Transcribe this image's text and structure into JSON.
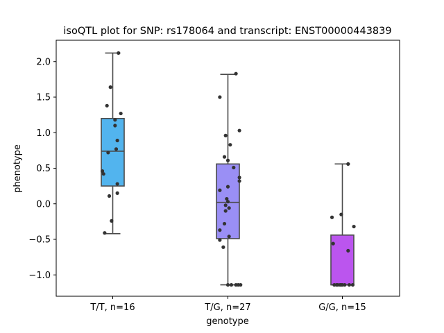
{
  "chart_data": {
    "type": "box",
    "title": "isoQTL plot for SNP: rs178064 and transcript: ENST00000443839",
    "xlabel": "genotype",
    "ylabel": "phenotype",
    "ylim": [
      -1.3,
      2.3
    ],
    "yticks": [
      -1.0,
      -0.5,
      0.0,
      0.5,
      1.0,
      1.5,
      2.0
    ],
    "ytick_labels": [
      "−1.0",
      "−0.5",
      "0.0",
      "0.5",
      "1.0",
      "1.5",
      "2.0"
    ],
    "grid": false,
    "categories": [
      "T/T, n=16",
      "T/G, n=27",
      "G/G, n=15"
    ],
    "colors": [
      "#52b4ee",
      "#9a8ff5",
      "#bb55ee"
    ],
    "boxes": [
      {
        "whisker_low": -0.42,
        "q1": 0.25,
        "median": 0.74,
        "q3": 1.2,
        "whisker_high": 2.12
      },
      {
        "whisker_low": -1.14,
        "q1": -0.49,
        "median": 0.02,
        "q3": 0.56,
        "whisker_high": 1.82
      },
      {
        "whisker_low": -1.14,
        "q1": -1.14,
        "median": -1.14,
        "q3": -0.44,
        "whisker_high": 0.56
      }
    ],
    "points": [
      [
        {
          "dx": 0.05,
          "y": 2.12
        },
        {
          "dx": -0.02,
          "y": 1.64
        },
        {
          "dx": -0.05,
          "y": 1.38
        },
        {
          "dx": 0.07,
          "y": 1.27
        },
        {
          "dx": 0.02,
          "y": 1.18
        },
        {
          "dx": 0.02,
          "y": 1.1
        },
        {
          "dx": 0.04,
          "y": 0.89
        },
        {
          "dx": 0.03,
          "y": 0.77
        },
        {
          "dx": -0.04,
          "y": 0.72
        },
        {
          "dx": -0.09,
          "y": 0.46
        },
        {
          "dx": -0.08,
          "y": 0.42
        },
        {
          "dx": 0.04,
          "y": 0.28
        },
        {
          "dx": 0.04,
          "y": 0.15
        },
        {
          "dx": -0.03,
          "y": 0.11
        },
        {
          "dx": -0.01,
          "y": -0.24
        },
        {
          "dx": -0.07,
          "y": -0.41
        }
      ],
      [
        {
          "dx": 0.07,
          "y": 1.83
        },
        {
          "dx": -0.07,
          "y": 1.5
        },
        {
          "dx": 0.1,
          "y": 1.03
        },
        {
          "dx": -0.02,
          "y": 0.96
        },
        {
          "dx": 0.02,
          "y": 0.83
        },
        {
          "dx": -0.03,
          "y": 0.66
        },
        {
          "dx": 0.0,
          "y": 0.61
        },
        {
          "dx": 0.05,
          "y": 0.51
        },
        {
          "dx": 0.1,
          "y": 0.37
        },
        {
          "dx": 0.1,
          "y": 0.32
        },
        {
          "dx": -0.0,
          "y": 0.24
        },
        {
          "dx": -0.07,
          "y": 0.19
        },
        {
          "dx": -0.01,
          "y": 0.07
        },
        {
          "dx": 0.0,
          "y": 0.03
        },
        {
          "dx": -0.02,
          "y": -0.02
        },
        {
          "dx": 0.01,
          "y": -0.06
        },
        {
          "dx": -0.02,
          "y": -0.1
        },
        {
          "dx": -0.03,
          "y": -0.28
        },
        {
          "dx": -0.07,
          "y": -0.37
        },
        {
          "dx": 0.01,
          "y": -0.46
        },
        {
          "dx": -0.07,
          "y": -0.51
        },
        {
          "dx": -0.04,
          "y": -0.61
        },
        {
          "dx": 0.0,
          "y": -1.14
        },
        {
          "dx": 0.03,
          "y": -1.14
        },
        {
          "dx": 0.07,
          "y": -1.14
        },
        {
          "dx": 0.09,
          "y": -1.14
        },
        {
          "dx": 0.11,
          "y": -1.14
        }
      ],
      [
        {
          "dx": 0.05,
          "y": 0.56
        },
        {
          "dx": -0.09,
          "y": -0.19
        },
        {
          "dx": -0.01,
          "y": -0.15
        },
        {
          "dx": 0.1,
          "y": -0.32
        },
        {
          "dx": -0.08,
          "y": -0.56
        },
        {
          "dx": 0.05,
          "y": -0.66
        },
        {
          "dx": -0.07,
          "y": -1.14
        },
        {
          "dx": -0.05,
          "y": -1.14
        },
        {
          "dx": -0.04,
          "y": -1.14
        },
        {
          "dx": -0.02,
          "y": -1.14
        },
        {
          "dx": -0.01,
          "y": -1.14
        },
        {
          "dx": 0.0,
          "y": -1.14
        },
        {
          "dx": 0.02,
          "y": -1.14
        },
        {
          "dx": 0.06,
          "y": -1.14
        },
        {
          "dx": 0.09,
          "y": -1.14
        }
      ]
    ]
  }
}
